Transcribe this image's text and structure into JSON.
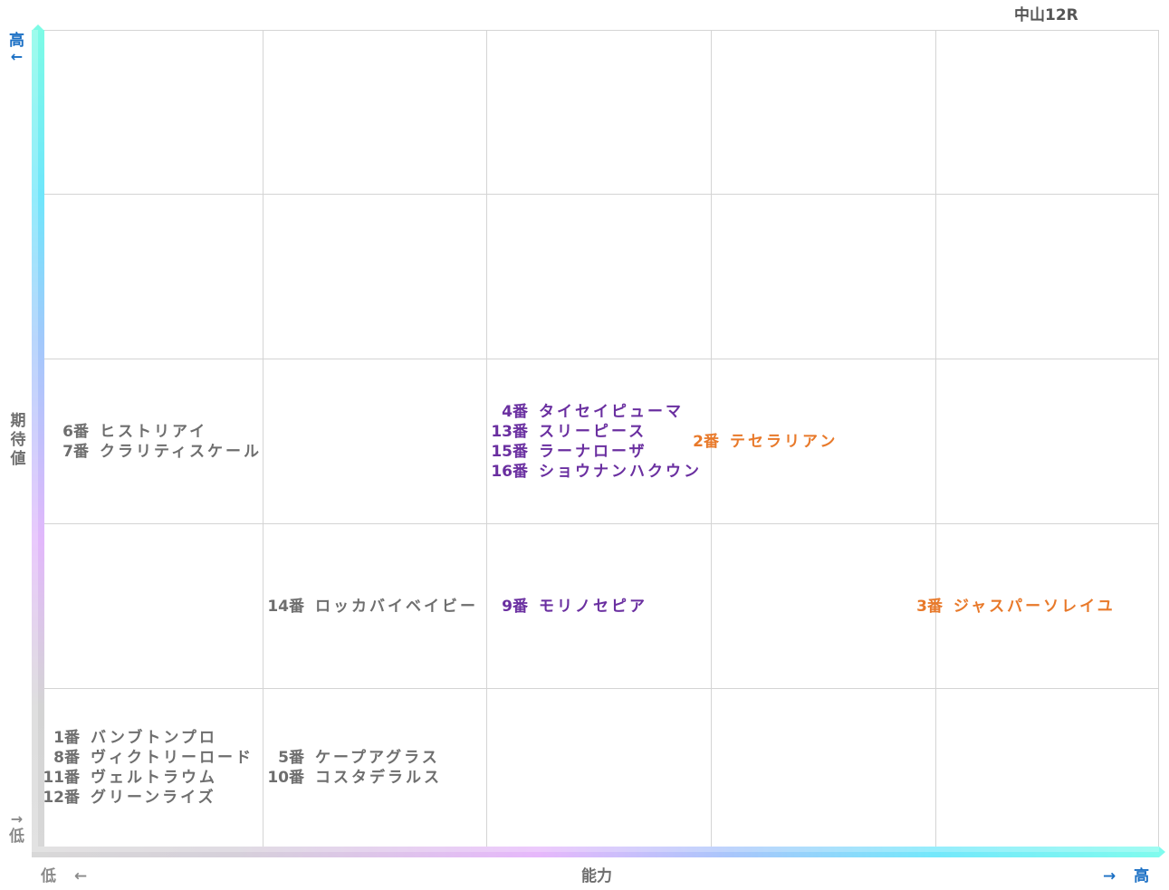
{
  "title": "中山12R",
  "axes": {
    "y": {
      "label": "期待値",
      "high": "高",
      "high_arrow": "←",
      "low": "低",
      "low_arrow": "→"
    },
    "x": {
      "label": "能力",
      "low": "低",
      "low_arrow": "←",
      "high": "高",
      "high_arrow": "→"
    }
  },
  "colors": {
    "default": "#6e6e6e",
    "purple": "#6a2fa0",
    "orange": "#e8792a",
    "axis_label_blue": "#1a6fc4",
    "axis_label_grey": "#8a8a8a",
    "grid": "#d4d4d4"
  },
  "chart_data": {
    "type": "table",
    "title": "中山12R",
    "xlabel": "能力",
    "ylabel": "期待値",
    "grid": {
      "columns": 5,
      "rows": 5,
      "x_direction": "低 → 高",
      "y_direction": "低 → 高"
    },
    "cells": [
      {
        "col": 1,
        "row": 3,
        "color": "default",
        "horses": [
          {
            "num": "6番",
            "name": "ヒストリアイ"
          },
          {
            "num": "7番",
            "name": "クラリティスケール"
          }
        ]
      },
      {
        "col": 3,
        "row": 3,
        "color": "purple",
        "horses": [
          {
            "num": "4番",
            "name": "タイセイピューマ"
          },
          {
            "num": "13番",
            "name": "スリーピース"
          },
          {
            "num": "15番",
            "name": "ラーナローザ"
          },
          {
            "num": "16番",
            "name": "ショウナンハクウン"
          }
        ]
      },
      {
        "col": 4,
        "row": 3,
        "color": "orange",
        "horses": [
          {
            "num": "2番",
            "name": "テセラリアン"
          }
        ]
      },
      {
        "col": 2,
        "row": 2,
        "color": "default",
        "horses": [
          {
            "num": "14番",
            "name": "ロッカバイベイビー"
          }
        ]
      },
      {
        "col": 3,
        "row": 2,
        "color": "purple",
        "horses": [
          {
            "num": "9番",
            "name": "モリノセピア"
          }
        ]
      },
      {
        "col": 5,
        "row": 2,
        "color": "orange",
        "horses": [
          {
            "num": "3番",
            "name": "ジャスパーソレイユ"
          }
        ]
      },
      {
        "col": 1,
        "row": 1,
        "color": "default",
        "horses": [
          {
            "num": "1番",
            "name": "バンブトンプロ"
          },
          {
            "num": "8番",
            "name": "ヴィクトリーロード"
          },
          {
            "num": "11番",
            "name": "ヴェルトラウム"
          },
          {
            "num": "12番",
            "name": "グリーンライズ"
          }
        ]
      },
      {
        "col": 2,
        "row": 1,
        "color": "default",
        "horses": [
          {
            "num": "5番",
            "name": "ケープアグラス"
          },
          {
            "num": "10番",
            "name": "コスタデラルス"
          }
        ]
      }
    ]
  }
}
